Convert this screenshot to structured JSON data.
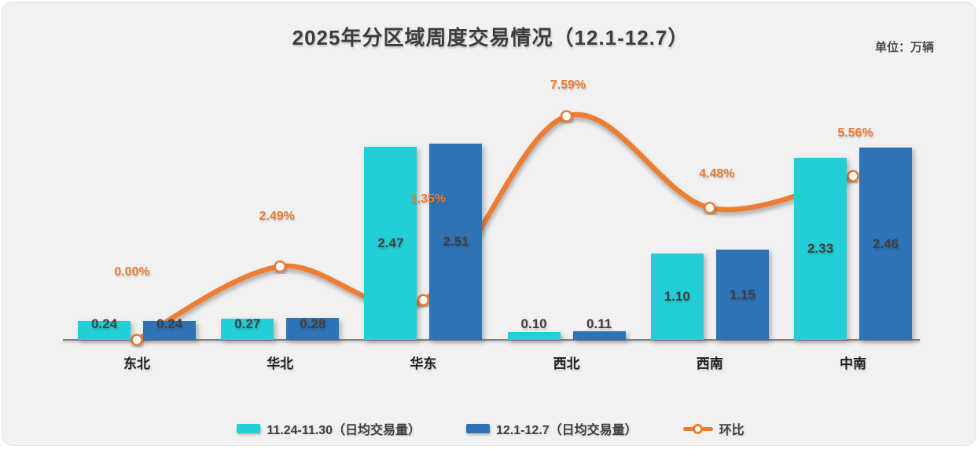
{
  "header": {
    "title": "2025年分区域周度交易情况（12.1-12.7）",
    "unit": "单位：万辆"
  },
  "colors": {
    "series1": "#22cfd6",
    "series2": "#2e73b5",
    "line": "#ed7d31",
    "axis": "#7f7f7f",
    "background": "#f1f1f2",
    "value_text": "#404040",
    "pct_text": "#ed7d31"
  },
  "chart_data": {
    "type": "bar",
    "title": "2025年分区域周度交易情况（12.1-12.7）",
    "unit_label": "单位：万辆",
    "categories": [
      "东北",
      "华北",
      "华东",
      "西北",
      "西南",
      "中南"
    ],
    "series": [
      {
        "name": "11.24-11.30（日均交易量）",
        "type": "bar",
        "values": [
          0.24,
          0.27,
          2.47,
          0.1,
          1.1,
          2.33
        ],
        "value_labels": [
          "0.24",
          "0.27",
          "2.47",
          "0.10",
          "1.10",
          "2.33"
        ]
      },
      {
        "name": "12.1-12.7（日均交易量）",
        "type": "bar",
        "values": [
          0.24,
          0.28,
          2.51,
          0.11,
          1.15,
          2.46
        ],
        "value_labels": [
          "0.24",
          "0.28",
          "2.51",
          "0.11",
          "1.15",
          "2.46"
        ]
      },
      {
        "name": "环比",
        "type": "line",
        "values": [
          0.0,
          2.49,
          1.35,
          7.59,
          4.48,
          5.56
        ],
        "unit": "%",
        "point_labels": [
          "0.00%",
          "2.49%",
          "1.35%",
          "7.59%",
          "4.48%",
          "5.56%"
        ]
      }
    ],
    "xlabel": "",
    "ylabel": "万辆",
    "y_axis_visible": false,
    "grid": false,
    "legend_position": "bottom",
    "secondary_axis_range_hint": [
      0,
      8
    ]
  },
  "legend": {
    "items": [
      {
        "label": "11.24-11.30（日均交易量）"
      },
      {
        "label": "12.1-12.7（日均交易量）"
      },
      {
        "label": "环比"
      }
    ]
  }
}
